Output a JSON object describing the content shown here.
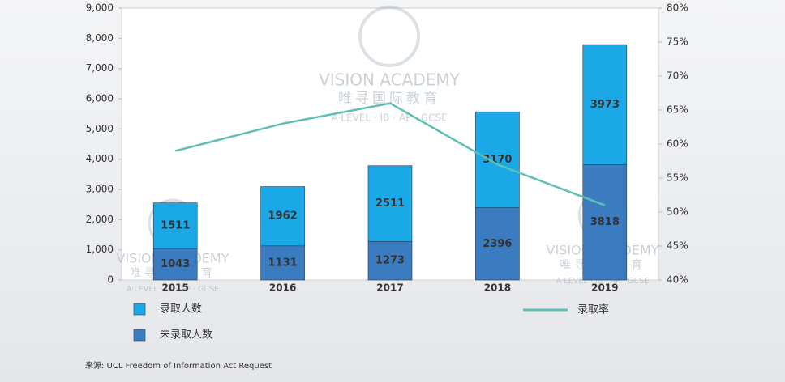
{
  "chart_data": {
    "type": "bar",
    "categories": [
      "2015",
      "2016",
      "2017",
      "2018",
      "2019"
    ],
    "series": [
      {
        "name": "未录取人数",
        "color": "#3b7cc0",
        "values": [
          1043,
          1131,
          1273,
          2396,
          3818
        ]
      },
      {
        "name": "录取人数",
        "color": "#1ba8e6",
        "values": [
          1511,
          1962,
          2511,
          3170,
          3973
        ]
      },
      {
        "name": "录取率",
        "color": "#5dbfb5",
        "type": "line",
        "axis": "y2",
        "values": [
          59,
          63,
          66,
          57,
          51
        ]
      }
    ],
    "stacked": true,
    "ylim": [
      0,
      9000
    ],
    "yticks": [
      0,
      {
        "value": 1000,
        "label": "1,000"
      },
      {
        "value": 2000,
        "label": "2,000"
      },
      {
        "value": 3000,
        "label": "3,000"
      },
      {
        "value": 4000,
        "label": "4,000"
      },
      {
        "value": 5000,
        "label": "5,000"
      },
      {
        "value": 6000,
        "label": "6,000"
      },
      {
        "value": 7000,
        "label": "7,000"
      },
      {
        "value": 8000,
        "label": "8,000"
      },
      {
        "value": 9000,
        "label": "9,000"
      }
    ],
    "y2lim": [
      40,
      80
    ],
    "y2ticks": [
      {
        "value": 40,
        "label": "40%"
      },
      {
        "value": 45,
        "label": "45%"
      },
      {
        "value": 50,
        "label": "50%"
      },
      {
        "value": 55,
        "label": "55%"
      },
      {
        "value": 60,
        "label": "60%"
      },
      {
        "value": 65,
        "label": "65%"
      },
      {
        "value": 70,
        "label": "70%"
      },
      {
        "value": 75,
        "label": "75%"
      },
      {
        "value": 80,
        "label": "80%"
      }
    ],
    "grid": false,
    "source": "来源:  UCL Freedom of Information Act Request",
    "watermark": [
      "VISION ACADEMY",
      "唯寻国际教育",
      "A·LEVEL · IB · AP · GCSE"
    ]
  }
}
